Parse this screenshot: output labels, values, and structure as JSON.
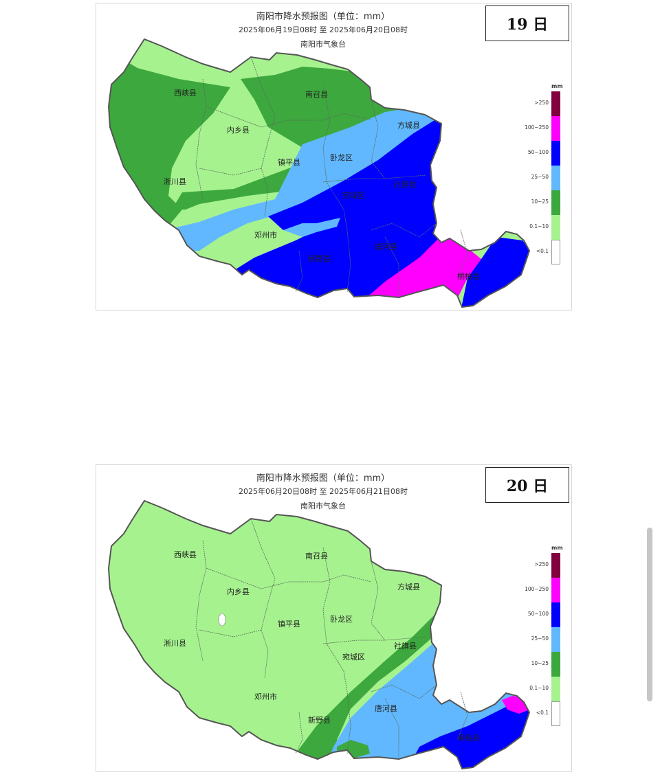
{
  "maps": [
    {
      "title": "南阳市降水预报图（单位：mm）",
      "period": "2025年06月19日08时  至  2025年06月20日08时",
      "agency": "南阳市气象台",
      "day_label": "19 日",
      "district_labels": [
        "西峡县",
        "南召县",
        "内乡县",
        "方城县",
        "卧龙区",
        "镇平县",
        "淅川县",
        "社旗县",
        "宛城区",
        "邓州市",
        "唐河县",
        "新野县",
        "桐柏县"
      ]
    },
    {
      "title": "南阳市降水预报图（单位：mm）",
      "period": "2025年06月20日08时  至  2025年06月21日08时",
      "agency": "南阳市气象台",
      "day_label": "20 日",
      "district_labels": [
        "西峡县",
        "南召县",
        "内乡县",
        "方城县",
        "卧龙区",
        "镇平县",
        "淅川县",
        "社旗县",
        "宛城区",
        "邓州市",
        "唐河县",
        "新野县",
        "桐柏县"
      ]
    }
  ],
  "legend": {
    "unit": "mm",
    "classes": [
      {
        "label": ">250",
        "color": "#800040"
      },
      {
        "label": "100~250",
        "color": "#ff00ff"
      },
      {
        "label": "50~100",
        "color": "#0000ff"
      },
      {
        "label": "25~50",
        "color": "#61b8ff"
      },
      {
        "label": "10~25",
        "color": "#3da83d"
      },
      {
        "label": "0.1~10",
        "color": "#a6f28f"
      },
      {
        "label": "<0.1",
        "color": "#ffffff"
      }
    ]
  }
}
